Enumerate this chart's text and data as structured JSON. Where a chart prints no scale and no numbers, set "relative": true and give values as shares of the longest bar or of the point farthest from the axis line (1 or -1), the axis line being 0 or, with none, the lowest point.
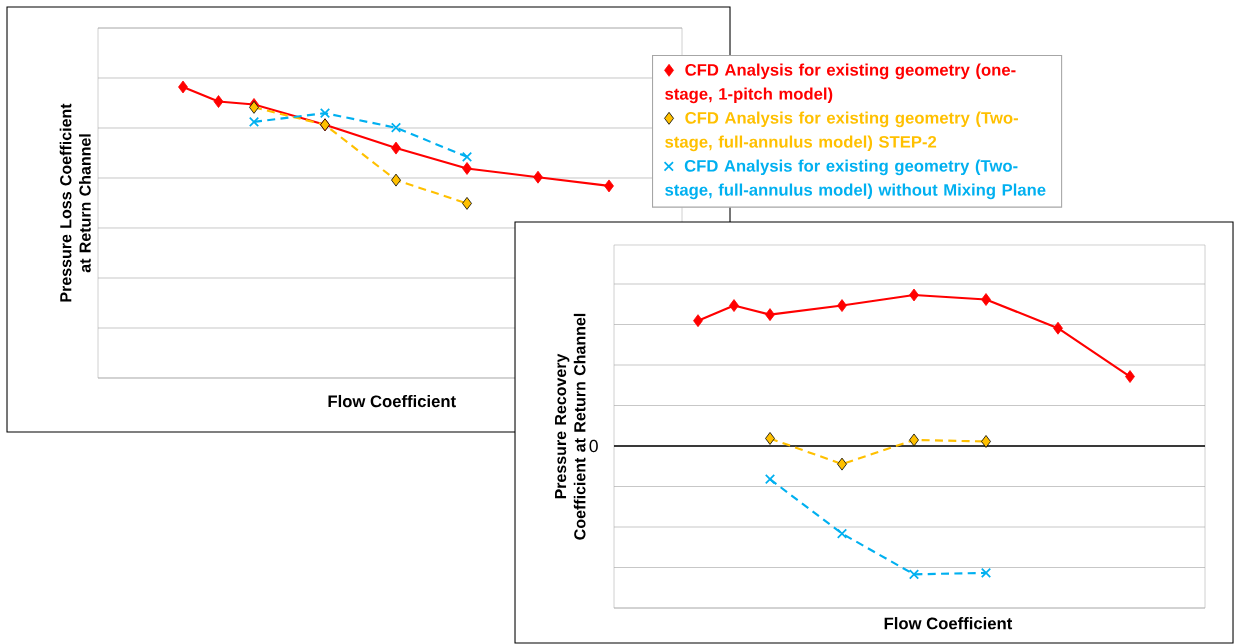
{
  "chart_data": [
    {
      "type": "line",
      "relative": true,
      "xlabel": "Flow Coefficient",
      "ylabel": "Pressure Loss Coefficient at Return Channel",
      "grid": "y",
      "categories": [
        null,
        null,
        null,
        null,
        null,
        null,
        null,
        null,
        null,
        null,
        null,
        null,
        null
      ],
      "series": [
        {
          "color": "#ff0000",
          "marker": "diamond",
          "line_style": "solid",
          "values": [
            1,
            0.95,
            0.94,
            null,
            0.87,
            null,
            0.79,
            null,
            0.72,
            null,
            0.69,
            null,
            0.66
          ]
        },
        {
          "color": "#ffc000",
          "marker": "diamond",
          "line_style": "dashed",
          "values": [
            null,
            null,
            0.93,
            null,
            0.87,
            null,
            0.68,
            null,
            0.6,
            null,
            null,
            null,
            null
          ]
        },
        {
          "color": "#00b0f0",
          "marker": "cross",
          "line_style": "dashed",
          "values": [
            null,
            null,
            0.88,
            null,
            0.91,
            null,
            0.86,
            null,
            0.76,
            null,
            null,
            null,
            null
          ]
        }
      ]
    },
    {
      "type": "line",
      "relative": true,
      "xlabel": "Flow Coefficient",
      "ylabel": "Pressure Recovery Coefficient at Return Channel",
      "grid": "y",
      "legend": "top",
      "categories": [
        null,
        null,
        null,
        null,
        null,
        null,
        null,
        null,
        null,
        null,
        null,
        null,
        null
      ],
      "ref_lines": [
        {
          "axis": "y",
          "value": 0,
          "label": "0",
          "color": "#000000"
        }
      ],
      "series": [
        {
          "name": "CFD Analysis for existing geometry (one-stage, 1-pitch model)",
          "color": "#ff0000",
          "marker": "diamond",
          "line_style": "solid",
          "values": [
            0.83,
            0.93,
            0.87,
            null,
            0.93,
            null,
            1,
            null,
            0.97,
            null,
            0.78,
            null,
            0.46
          ]
        },
        {
          "name": "CFD Analysis for existing geometry (Two-stage, full-annulus model)  STEP-2",
          "color": "#ffc000",
          "marker": "diamond",
          "line_style": "dashed",
          "values": [
            null,
            null,
            0.05,
            null,
            -0.12,
            null,
            0.04,
            null,
            0.03,
            null,
            null,
            null,
            null
          ]
        },
        {
          "name": "CFD Analysis for existing geometry (Two-stage, full-annulus model)  without Mixing Plane",
          "color": "#00b0f0",
          "marker": "cross",
          "line_style": "dashed",
          "values": [
            null,
            null,
            -0.22,
            null,
            -0.58,
            null,
            -0.85,
            null,
            -0.84,
            null,
            null,
            null,
            null
          ]
        }
      ]
    }
  ]
}
